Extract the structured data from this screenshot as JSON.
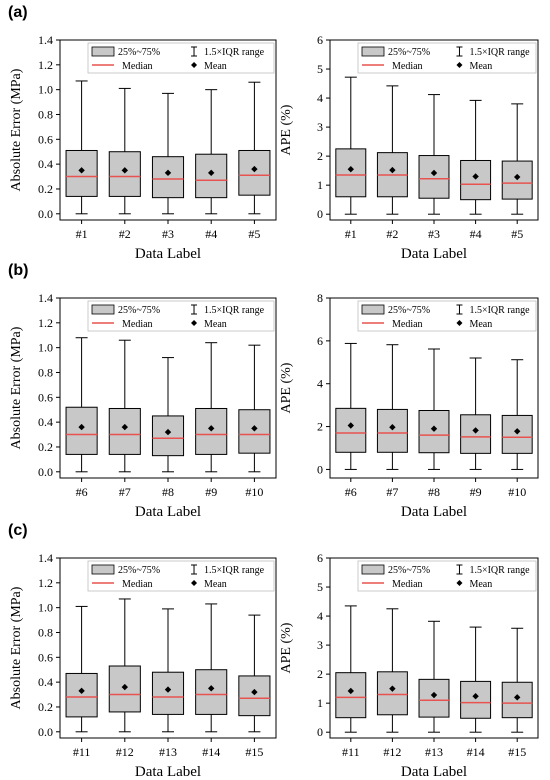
{
  "panel_labels": [
    "(a)",
    "(b)",
    "(c)"
  ],
  "legend": {
    "box_label": "25%~75%",
    "whisker_label": "1.5×IQR range",
    "median_label": "Median",
    "mean_label": "Mean"
  },
  "colors": {
    "box_fill": "#c8c8c8",
    "median": "#e8534f",
    "mean": "#000000",
    "axis": "#000000"
  },
  "chart_data": [
    {
      "type": "box",
      "panel": "(a)",
      "xlabel": "Data Label",
      "ylabel": "Absolute Error (MPa)",
      "ylim": [
        -0.05,
        1.4
      ],
      "yticks": [
        0.0,
        0.2,
        0.4,
        0.6,
        0.8,
        1.0,
        1.2,
        1.4
      ],
      "ytick_labels": [
        "0.0",
        "0.2",
        "0.4",
        "0.6",
        "0.8",
        "1.0",
        "1.2",
        "1.4"
      ],
      "categories": [
        "#1",
        "#2",
        "#3",
        "#4",
        "#5"
      ],
      "boxes": [
        {
          "min": 0.0,
          "q1": 0.14,
          "median": 0.3,
          "q3": 0.51,
          "max": 1.07,
          "mean": 0.35
        },
        {
          "min": 0.0,
          "q1": 0.14,
          "median": 0.3,
          "q3": 0.5,
          "max": 1.01,
          "mean": 0.35
        },
        {
          "min": 0.0,
          "q1": 0.13,
          "median": 0.28,
          "q3": 0.46,
          "max": 0.97,
          "mean": 0.33
        },
        {
          "min": 0.0,
          "q1": 0.13,
          "median": 0.27,
          "q3": 0.48,
          "max": 1.0,
          "mean": 0.33
        },
        {
          "min": 0.0,
          "q1": 0.15,
          "median": 0.31,
          "q3": 0.51,
          "max": 1.06,
          "mean": 0.36
        }
      ]
    },
    {
      "type": "box",
      "panel": "(a)",
      "xlabel": "Data Label",
      "ylabel": "APE (%)",
      "ylim": [
        -0.2,
        6.0
      ],
      "yticks": [
        0,
        1,
        2,
        3,
        4,
        5,
        6
      ],
      "ytick_labels": [
        "0",
        "1",
        "2",
        "3",
        "4",
        "5",
        "6"
      ],
      "categories": [
        "#1",
        "#2",
        "#3",
        "#4",
        "#5"
      ],
      "boxes": [
        {
          "min": 0.0,
          "q1": 0.6,
          "median": 1.35,
          "q3": 2.25,
          "max": 4.72,
          "mean": 1.55
        },
        {
          "min": 0.0,
          "q1": 0.6,
          "median": 1.35,
          "q3": 2.12,
          "max": 4.42,
          "mean": 1.52
        },
        {
          "min": 0.0,
          "q1": 0.55,
          "median": 1.22,
          "q3": 2.02,
          "max": 4.12,
          "mean": 1.42
        },
        {
          "min": 0.0,
          "q1": 0.5,
          "median": 1.03,
          "q3": 1.85,
          "max": 3.92,
          "mean": 1.3
        },
        {
          "min": 0.0,
          "q1": 0.52,
          "median": 1.07,
          "q3": 1.83,
          "max": 3.8,
          "mean": 1.28
        }
      ]
    },
    {
      "type": "box",
      "panel": "(b)",
      "xlabel": "Data Label",
      "ylabel": "Absolute Error (MPa)",
      "ylim": [
        -0.05,
        1.4
      ],
      "yticks": [
        0.0,
        0.2,
        0.4,
        0.6,
        0.8,
        1.0,
        1.2,
        1.4
      ],
      "ytick_labels": [
        "0.0",
        "0.2",
        "0.4",
        "0.6",
        "0.8",
        "1.0",
        "1.2",
        "1.4"
      ],
      "categories": [
        "#6",
        "#7",
        "#8",
        "#9",
        "#10"
      ],
      "boxes": [
        {
          "min": 0.0,
          "q1": 0.14,
          "median": 0.3,
          "q3": 0.52,
          "max": 1.08,
          "mean": 0.36
        },
        {
          "min": 0.0,
          "q1": 0.14,
          "median": 0.3,
          "q3": 0.51,
          "max": 1.06,
          "mean": 0.36
        },
        {
          "min": 0.0,
          "q1": 0.13,
          "median": 0.27,
          "q3": 0.45,
          "max": 0.92,
          "mean": 0.32
        },
        {
          "min": 0.0,
          "q1": 0.14,
          "median": 0.3,
          "q3": 0.51,
          "max": 1.04,
          "mean": 0.35
        },
        {
          "min": 0.0,
          "q1": 0.15,
          "median": 0.3,
          "q3": 0.5,
          "max": 1.02,
          "mean": 0.35
        }
      ]
    },
    {
      "type": "box",
      "panel": "(b)",
      "xlabel": "Data Label",
      "ylabel": "APE (%)",
      "ylim": [
        -0.4,
        8.0
      ],
      "yticks": [
        0,
        2,
        4,
        6,
        8
      ],
      "ytick_labels": [
        "0",
        "2",
        "4",
        "6",
        "8"
      ],
      "categories": [
        "#6",
        "#7",
        "#8",
        "#9",
        "#10"
      ],
      "boxes": [
        {
          "min": 0.0,
          "q1": 0.8,
          "median": 1.7,
          "q3": 2.85,
          "max": 5.88,
          "mean": 2.05
        },
        {
          "min": 0.0,
          "q1": 0.8,
          "median": 1.7,
          "q3": 2.8,
          "max": 5.82,
          "mean": 1.97
        },
        {
          "min": 0.0,
          "q1": 0.78,
          "median": 1.6,
          "q3": 2.75,
          "max": 5.62,
          "mean": 1.9
        },
        {
          "min": 0.0,
          "q1": 0.75,
          "median": 1.52,
          "q3": 2.55,
          "max": 5.2,
          "mean": 1.82
        },
        {
          "min": 0.0,
          "q1": 0.75,
          "median": 1.5,
          "q3": 2.52,
          "max": 5.12,
          "mean": 1.78
        }
      ]
    },
    {
      "type": "box",
      "panel": "(c)",
      "xlabel": "Data Label",
      "ylabel": "Absolute Error (MPa)",
      "ylim": [
        -0.05,
        1.4
      ],
      "yticks": [
        0.0,
        0.2,
        0.4,
        0.6,
        0.8,
        1.0,
        1.2,
        1.4
      ],
      "ytick_labels": [
        "0.0",
        "0.2",
        "0.4",
        "0.6",
        "0.8",
        "1.0",
        "1.2",
        "1.4"
      ],
      "categories": [
        "#11",
        "#12",
        "#13",
        "#14",
        "#15"
      ],
      "boxes": [
        {
          "min": 0.0,
          "q1": 0.12,
          "median": 0.28,
          "q3": 0.47,
          "max": 1.01,
          "mean": 0.33
        },
        {
          "min": 0.0,
          "q1": 0.16,
          "median": 0.3,
          "q3": 0.53,
          "max": 1.07,
          "mean": 0.36
        },
        {
          "min": 0.0,
          "q1": 0.14,
          "median": 0.28,
          "q3": 0.48,
          "max": 0.99,
          "mean": 0.34
        },
        {
          "min": 0.0,
          "q1": 0.14,
          "median": 0.3,
          "q3": 0.5,
          "max": 1.03,
          "mean": 0.35
        },
        {
          "min": 0.0,
          "q1": 0.13,
          "median": 0.27,
          "q3": 0.45,
          "max": 0.94,
          "mean": 0.32
        }
      ]
    },
    {
      "type": "box",
      "panel": "(c)",
      "xlabel": "Data Label",
      "ylabel": "APE (%)",
      "ylim": [
        -0.2,
        6.0
      ],
      "yticks": [
        0,
        1,
        2,
        3,
        4,
        5,
        6
      ],
      "ytick_labels": [
        "0",
        "1",
        "2",
        "3",
        "4",
        "5",
        "6"
      ],
      "categories": [
        "#11",
        "#12",
        "#13",
        "#14",
        "#15"
      ],
      "boxes": [
        {
          "min": 0.0,
          "q1": 0.5,
          "median": 1.2,
          "q3": 2.05,
          "max": 4.35,
          "mean": 1.42
        },
        {
          "min": 0.0,
          "q1": 0.6,
          "median": 1.3,
          "q3": 2.08,
          "max": 4.25,
          "mean": 1.5
        },
        {
          "min": 0.0,
          "q1": 0.52,
          "median": 1.1,
          "q3": 1.82,
          "max": 3.82,
          "mean": 1.28
        },
        {
          "min": 0.0,
          "q1": 0.48,
          "median": 1.02,
          "q3": 1.75,
          "max": 3.62,
          "mean": 1.24
        },
        {
          "min": 0.0,
          "q1": 0.5,
          "median": 1.0,
          "q3": 1.72,
          "max": 3.58,
          "mean": 1.2
        }
      ]
    }
  ]
}
